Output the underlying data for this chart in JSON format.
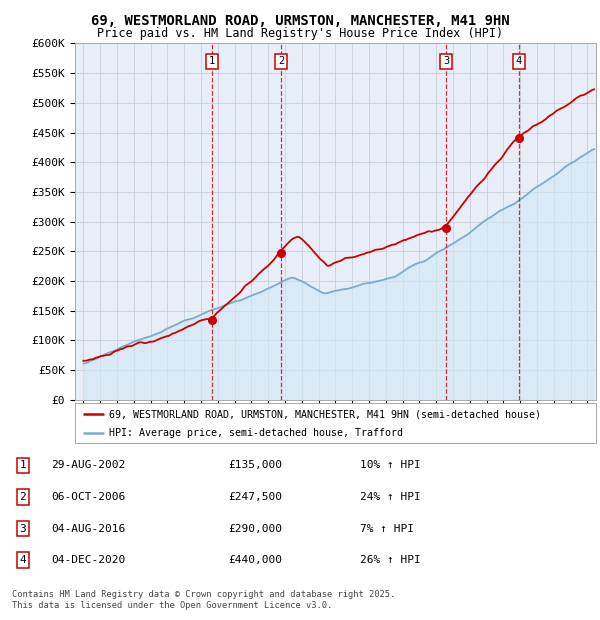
{
  "title_line1": "69, WESTMORLAND ROAD, URMSTON, MANCHESTER, M41 9HN",
  "title_line2": "Price paid vs. HM Land Registry's House Price Index (HPI)",
  "ylabel_ticks": [
    "£0",
    "£50K",
    "£100K",
    "£150K",
    "£200K",
    "£250K",
    "£300K",
    "£350K",
    "£400K",
    "£450K",
    "£500K",
    "£550K",
    "£600K"
  ],
  "ytick_values": [
    0,
    50000,
    100000,
    150000,
    200000,
    250000,
    300000,
    350000,
    400000,
    450000,
    500000,
    550000,
    600000
  ],
  "xmin": 1994.5,
  "xmax": 2025.5,
  "ymin": 0,
  "ymax": 600000,
  "sale_dates": [
    2002.66,
    2006.76,
    2016.59,
    2020.92
  ],
  "sale_prices": [
    135000,
    247500,
    290000,
    440000
  ],
  "sale_labels": [
    "1",
    "2",
    "3",
    "4"
  ],
  "sale_label_pcts": [
    "10% ↑ HPI",
    "24% ↑ HPI",
    "7% ↑ HPI",
    "26% ↑ HPI"
  ],
  "sale_label_dates": [
    "29-AUG-2002",
    "06-OCT-2006",
    "04-AUG-2016",
    "04-DEC-2020"
  ],
  "sale_label_prices_str": [
    "£135,000",
    "£247,500",
    "£290,000",
    "£440,000"
  ],
  "red_line_color": "#cc0000",
  "blue_line_color": "#7aadcc",
  "blue_fill_color": "#d0e8f5",
  "background_color": "#e8eef8",
  "grid_color": "#c8d0dc",
  "sale_vline_color": "#cc0000",
  "annotation_box_color": "#ffffff",
  "annotation_box_edge": "#cc0000",
  "footer_text": "Contains HM Land Registry data © Crown copyright and database right 2025.\nThis data is licensed under the Open Government Licence v3.0.",
  "legend_label_red": "69, WESTMORLAND ROAD, URMSTON, MANCHESTER, M41 9HN (semi-detached house)",
  "legend_label_blue": "HPI: Average price, semi-detached house, Trafford"
}
